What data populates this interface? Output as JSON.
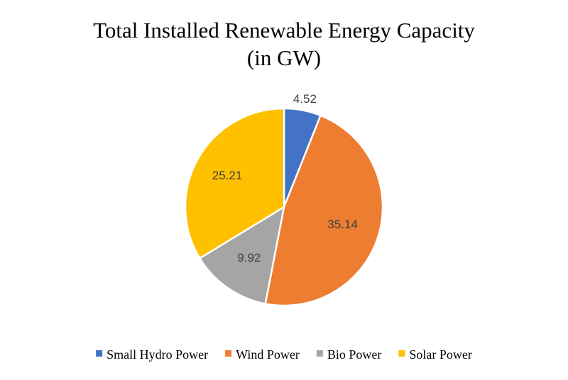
{
  "chart_data": {
    "type": "pie",
    "title": [
      "Total Installed Renewable Energy Capacity",
      "(in GW)"
    ],
    "slices": [
      {
        "name": "Small Hydro Power",
        "value": 4.52,
        "label": "4.52",
        "color": "#4472C4"
      },
      {
        "name": "Wind Power",
        "value": 35.14,
        "label": "35.14",
        "color": "#ED7D31"
      },
      {
        "name": "Bio Power",
        "value": 9.92,
        "label": "9.92",
        "color": "#A5A5A5"
      },
      {
        "name": "Solar Power",
        "value": 25.21,
        "label": "25.21",
        "color": "#FFC000"
      }
    ],
    "legend_position": "bottom",
    "start_angle": "top",
    "direction": "clockwise"
  }
}
